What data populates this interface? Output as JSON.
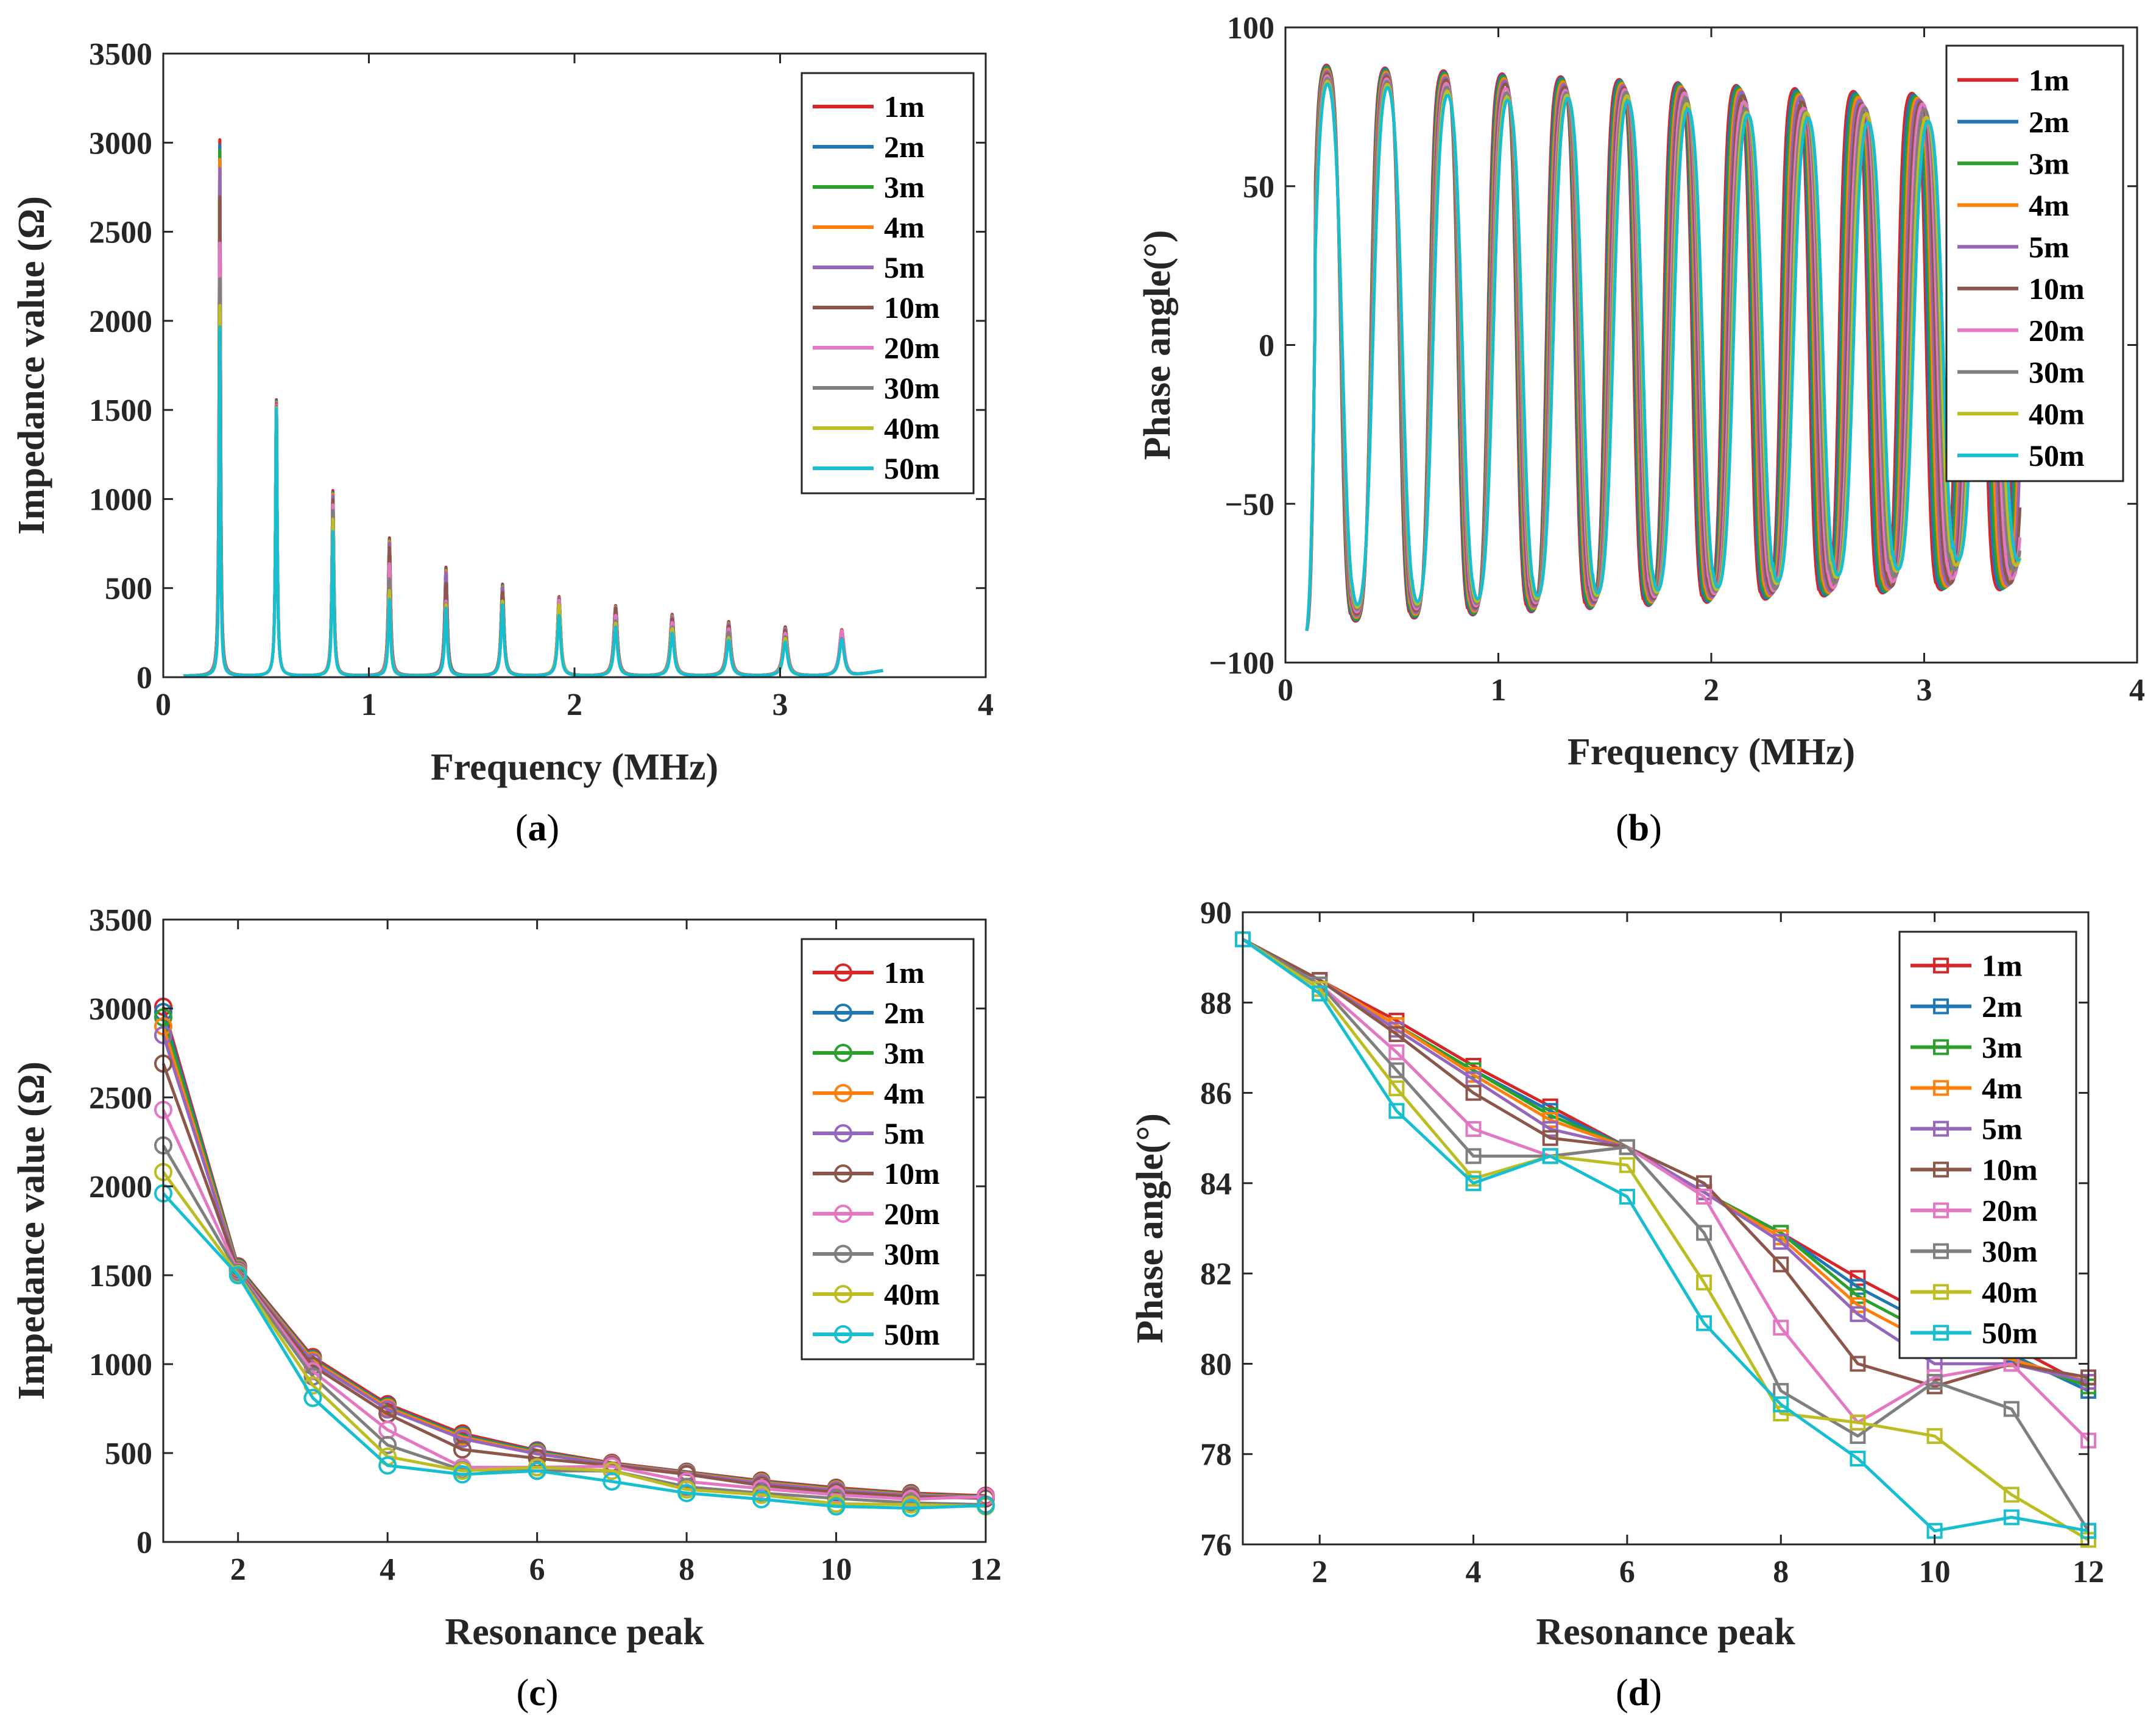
{
  "colors": [
    "#D62728",
    "#1F77B4",
    "#2CA02C",
    "#FF7F0E",
    "#9467BD",
    "#8C564B",
    "#E377C2",
    "#7F7F7F",
    "#BCBD22",
    "#17BECF"
  ],
  "captions": [
    {
      "open": "(",
      "letter": "a",
      "close": ")"
    },
    {
      "open": "(",
      "letter": "b",
      "close": ")"
    },
    {
      "open": "(",
      "letter": "c",
      "close": ")"
    },
    {
      "open": "(",
      "letter": "d",
      "close": ")"
    }
  ],
  "chart_data": [
    {
      "id": "a",
      "type": "line",
      "title": "",
      "xlabel": "Frequency (MHz)",
      "ylabel": "Impedance value (Ω)",
      "xlim": [
        0,
        4
      ],
      "ylim": [
        0,
        3500
      ],
      "xticks": [
        "0",
        "1",
        "2",
        "3",
        "4"
      ],
      "yticks": [
        "0",
        "500",
        "1000",
        "1500",
        "2000",
        "2500",
        "3000",
        "3500"
      ],
      "legend": [
        "1m",
        "2m",
        "3m",
        "4m",
        "5m",
        "10m",
        "20m",
        "30m",
        "40m",
        "50m"
      ],
      "legend_loc": "top-right",
      "x_range": [
        0.1,
        3.5
      ],
      "peak_freqs_mhz": [
        0.275,
        0.55,
        0.825,
        1.1,
        1.375,
        1.65,
        1.925,
        2.2,
        2.475,
        2.75,
        3.025,
        3.3
      ],
      "series": [
        {
          "name": "1m",
          "peaks": [
            3010,
            1550,
            1040,
            775,
            610,
            515,
            445,
            395,
            345,
            305,
            275,
            260
          ]
        },
        {
          "name": "2m",
          "peaks": [
            2980,
            1545,
            1030,
            765,
            600,
            510,
            440,
            392,
            340,
            300,
            270,
            255
          ]
        },
        {
          "name": "3m",
          "peaks": [
            2950,
            1540,
            1025,
            760,
            595,
            505,
            440,
            390,
            338,
            298,
            268,
            252
          ]
        },
        {
          "name": "4m",
          "peaks": [
            2900,
            1535,
            1020,
            755,
            590,
            500,
            438,
            388,
            335,
            295,
            265,
            250
          ]
        },
        {
          "name": "5m",
          "peaks": [
            2850,
            1530,
            1010,
            745,
            580,
            495,
            436,
            385,
            330,
            290,
            262,
            248
          ]
        },
        {
          "name": "10m",
          "peaks": [
            2690,
            1525,
            990,
            720,
            520,
            470,
            430,
            380,
            318,
            280,
            255,
            245
          ]
        },
        {
          "name": "20m",
          "peaks": [
            2430,
            1520,
            960,
            630,
            420,
            420,
            425,
            340,
            300,
            265,
            240,
            255
          ]
        },
        {
          "name": "30m",
          "peaks": [
            2230,
            1515,
            930,
            545,
            405,
            400,
            400,
            310,
            275,
            245,
            220,
            210
          ]
        },
        {
          "name": "40m",
          "peaks": [
            2080,
            1505,
            880,
            480,
            400,
            420,
            400,
            295,
            265,
            215,
            210,
            200
          ]
        },
        {
          "name": "50m",
          "peaks": [
            1960,
            1500,
            810,
            430,
            380,
            400,
            340,
            275,
            240,
            200,
            190,
            205
          ]
        }
      ]
    },
    {
      "id": "b",
      "type": "line",
      "title": "",
      "xlabel": "Frequency (MHz)",
      "ylabel": "Phase angle(°)",
      "xlim": [
        0,
        4
      ],
      "ylim": [
        -100,
        100
      ],
      "xticks": [
        "0",
        "1",
        "2",
        "3",
        "4"
      ],
      "yticks": [
        "−100",
        "−50",
        "0",
        "50",
        "100"
      ],
      "legend": [
        "1m",
        "2m",
        "3m",
        "4m",
        "5m",
        "10m",
        "20m",
        "30m",
        "40m",
        "50m"
      ],
      "legend_loc": "top-right",
      "x_range": [
        0.1,
        3.45
      ],
      "start_value": -90,
      "series": [
        {
          "name": "1m",
          "highs": [
            89.4,
            88.5,
            87.6,
            86.6,
            85.7,
            84.8,
            83.8,
            82.9,
            81.9,
            81.0,
            80.4,
            79.5
          ],
          "lows": [
            -89,
            -88,
            -87,
            -86,
            -85,
            -84,
            -83,
            -82,
            -81,
            -80,
            -79,
            -78
          ]
        },
        {
          "name": "2m",
          "highs": [
            89.4,
            88.5,
            87.5,
            86.5,
            85.6,
            84.8,
            83.8,
            82.9,
            81.7,
            80.8,
            80.2,
            79.4
          ],
          "lows": [
            -89,
            -88,
            -87,
            -86,
            -85,
            -84,
            -83,
            -82,
            -81,
            -80,
            -79,
            -78
          ]
        },
        {
          "name": "3m",
          "highs": [
            89.4,
            88.5,
            87.5,
            86.5,
            85.5,
            84.8,
            83.8,
            82.9,
            81.5,
            80.6,
            80.1,
            79.5
          ],
          "lows": [
            -89,
            -88,
            -87,
            -86,
            -85,
            -84,
            -83,
            -82,
            -81,
            -80,
            -79,
            -78
          ]
        },
        {
          "name": "4m",
          "highs": [
            89.4,
            88.5,
            87.5,
            86.4,
            85.4,
            84.8,
            83.8,
            82.8,
            81.3,
            80.4,
            80.1,
            79.6
          ],
          "lows": [
            -89,
            -88,
            -87,
            -86,
            -85,
            -84,
            -83,
            -82,
            -81,
            -80,
            -79,
            -78
          ]
        },
        {
          "name": "5m",
          "highs": [
            89.4,
            88.5,
            87.4,
            86.3,
            85.2,
            84.8,
            83.8,
            82.7,
            81.1,
            80.0,
            80.0,
            79.6
          ],
          "lows": [
            -89,
            -88,
            -87,
            -86,
            -85,
            -84,
            -83,
            -82,
            -81,
            -80,
            -79,
            -78
          ]
        },
        {
          "name": "10m",
          "highs": [
            89.4,
            88.5,
            87.3,
            86.0,
            85.0,
            84.8,
            84.0,
            82.2,
            80.0,
            79.5,
            80.0,
            79.7
          ],
          "lows": [
            -89,
            -88,
            -87,
            -86,
            -85,
            -84,
            -83,
            -82,
            -81,
            -80,
            -79,
            -78
          ]
        },
        {
          "name": "20m",
          "highs": [
            89.4,
            88.4,
            86.9,
            85.2,
            84.6,
            84.8,
            83.7,
            80.8,
            78.7,
            79.7,
            80.0,
            78.3
          ],
          "lows": [
            -89,
            -88,
            -87,
            -86,
            -85,
            -84,
            -83,
            -82,
            -81,
            -80,
            -78,
            -77
          ]
        },
        {
          "name": "30m",
          "highs": [
            89.4,
            88.4,
            86.5,
            84.6,
            84.6,
            84.8,
            82.9,
            79.4,
            78.4,
            79.6,
            79.0,
            76.3
          ],
          "lows": [
            -89,
            -88,
            -87,
            -86,
            -85,
            -84,
            -83,
            -82,
            -81,
            -79,
            -77,
            -75
          ]
        },
        {
          "name": "40m",
          "highs": [
            89.4,
            88.3,
            86.1,
            84.1,
            84.6,
            84.4,
            81.8,
            78.9,
            78.7,
            78.4,
            77.1,
            76.1
          ],
          "lows": [
            -89,
            -88,
            -87,
            -86,
            -85,
            -84,
            -83,
            -82,
            -80,
            -78,
            -76,
            -74
          ]
        },
        {
          "name": "50m",
          "highs": [
            89.4,
            88.2,
            85.6,
            84.0,
            84.6,
            83.7,
            80.9,
            79.1,
            77.9,
            76.3,
            76.6,
            76.3
          ],
          "lows": [
            -89,
            -88,
            -87,
            -86,
            -85,
            -84,
            -83,
            -82,
            -80,
            -78,
            -76,
            -73
          ]
        }
      ]
    },
    {
      "id": "c",
      "type": "line",
      "title": "",
      "xlabel": "Resonance peak",
      "ylabel": "Impedance value (Ω)",
      "xlim": [
        1,
        12
      ],
      "ylim": [
        0,
        3500
      ],
      "xticks": [
        "2",
        "4",
        "6",
        "8",
        "10",
        "12"
      ],
      "xtick_values": [
        2,
        4,
        6,
        8,
        10,
        12
      ],
      "yticks": [
        "0",
        "500",
        "1000",
        "1500",
        "2000",
        "2500",
        "3000",
        "3500"
      ],
      "marker": "circle",
      "legend": [
        "1m",
        "2m",
        "3m",
        "4m",
        "5m",
        "10m",
        "20m",
        "30m",
        "40m",
        "50m"
      ],
      "legend_loc": "top-right",
      "x": [
        1,
        2,
        3,
        4,
        5,
        6,
        7,
        8,
        9,
        10,
        11,
        12
      ],
      "series": [
        {
          "name": "1m",
          "values": [
            3010,
            1550,
            1040,
            775,
            610,
            515,
            445,
            395,
            345,
            305,
            275,
            260
          ]
        },
        {
          "name": "2m",
          "values": [
            2980,
            1545,
            1030,
            765,
            600,
            510,
            440,
            392,
            340,
            300,
            270,
            255
          ]
        },
        {
          "name": "3m",
          "values": [
            2950,
            1540,
            1025,
            760,
            595,
            505,
            440,
            390,
            338,
            298,
            268,
            252
          ]
        },
        {
          "name": "4m",
          "values": [
            2900,
            1535,
            1020,
            755,
            590,
            500,
            438,
            388,
            335,
            295,
            265,
            250
          ]
        },
        {
          "name": "5m",
          "values": [
            2850,
            1530,
            1010,
            745,
            580,
            495,
            436,
            385,
            330,
            290,
            262,
            248
          ]
        },
        {
          "name": "10m",
          "values": [
            2690,
            1525,
            990,
            720,
            520,
            470,
            430,
            380,
            318,
            280,
            255,
            245
          ]
        },
        {
          "name": "20m",
          "values": [
            2430,
            1520,
            960,
            630,
            420,
            420,
            425,
            340,
            300,
            265,
            240,
            255
          ]
        },
        {
          "name": "30m",
          "values": [
            2230,
            1515,
            930,
            545,
            405,
            400,
            400,
            310,
            275,
            245,
            220,
            210
          ]
        },
        {
          "name": "40m",
          "values": [
            2080,
            1505,
            880,
            480,
            400,
            420,
            400,
            295,
            265,
            215,
            210,
            200
          ]
        },
        {
          "name": "50m",
          "values": [
            1960,
            1500,
            810,
            430,
            380,
            400,
            340,
            275,
            240,
            200,
            190,
            205
          ]
        }
      ]
    },
    {
      "id": "d",
      "type": "line",
      "title": "",
      "xlabel": "Resonance peak",
      "ylabel": "Phase angle(°)",
      "xlim": [
        1,
        12
      ],
      "ylim": [
        76,
        90
      ],
      "xticks": [
        "2",
        "4",
        "6",
        "8",
        "10",
        "12"
      ],
      "xtick_values": [
        2,
        4,
        6,
        8,
        10,
        12
      ],
      "yticks": [
        "76",
        "78",
        "80",
        "82",
        "84",
        "86",
        "88",
        "90"
      ],
      "marker": "square",
      "legend": [
        "1m",
        "2m",
        "3m",
        "4m",
        "5m",
        "10m",
        "20m",
        "30m",
        "40m",
        "50m"
      ],
      "legend_loc": "top-right",
      "x": [
        1,
        2,
        3,
        4,
        5,
        6,
        7,
        8,
        9,
        10,
        11,
        12
      ],
      "series": [
        {
          "name": "1m",
          "values": [
            89.4,
            88.5,
            87.6,
            86.6,
            85.7,
            84.8,
            83.8,
            82.9,
            81.9,
            81.0,
            80.4,
            79.5
          ]
        },
        {
          "name": "2m",
          "values": [
            89.4,
            88.5,
            87.5,
            86.5,
            85.6,
            84.8,
            83.8,
            82.9,
            81.7,
            80.8,
            80.2,
            79.4
          ]
        },
        {
          "name": "3m",
          "values": [
            89.4,
            88.5,
            87.5,
            86.5,
            85.5,
            84.8,
            83.8,
            82.9,
            81.5,
            80.6,
            80.1,
            79.5
          ]
        },
        {
          "name": "4m",
          "values": [
            89.4,
            88.5,
            87.5,
            86.4,
            85.4,
            84.8,
            83.8,
            82.8,
            81.3,
            80.4,
            80.1,
            79.6
          ]
        },
        {
          "name": "5m",
          "values": [
            89.4,
            88.5,
            87.4,
            86.3,
            85.2,
            84.8,
            83.8,
            82.7,
            81.1,
            80.0,
            80.0,
            79.6
          ]
        },
        {
          "name": "10m",
          "values": [
            89.4,
            88.5,
            87.3,
            86.0,
            85.0,
            84.8,
            84.0,
            82.2,
            80.0,
            79.5,
            80.0,
            79.7
          ]
        },
        {
          "name": "20m",
          "values": [
            89.4,
            88.4,
            86.9,
            85.2,
            84.6,
            84.8,
            83.7,
            80.8,
            78.7,
            79.7,
            80.0,
            78.3
          ]
        },
        {
          "name": "30m",
          "values": [
            89.4,
            88.4,
            86.5,
            84.6,
            84.6,
            84.8,
            82.9,
            79.4,
            78.4,
            79.6,
            79.0,
            76.3
          ]
        },
        {
          "name": "40m",
          "values": [
            89.4,
            88.3,
            86.1,
            84.1,
            84.6,
            84.4,
            81.8,
            78.9,
            78.7,
            78.4,
            77.1,
            76.1
          ]
        },
        {
          "name": "50m",
          "values": [
            89.4,
            88.2,
            85.6,
            84.0,
            84.6,
            83.7,
            80.9,
            79.1,
            77.9,
            76.3,
            76.6,
            76.3
          ]
        }
      ]
    }
  ]
}
